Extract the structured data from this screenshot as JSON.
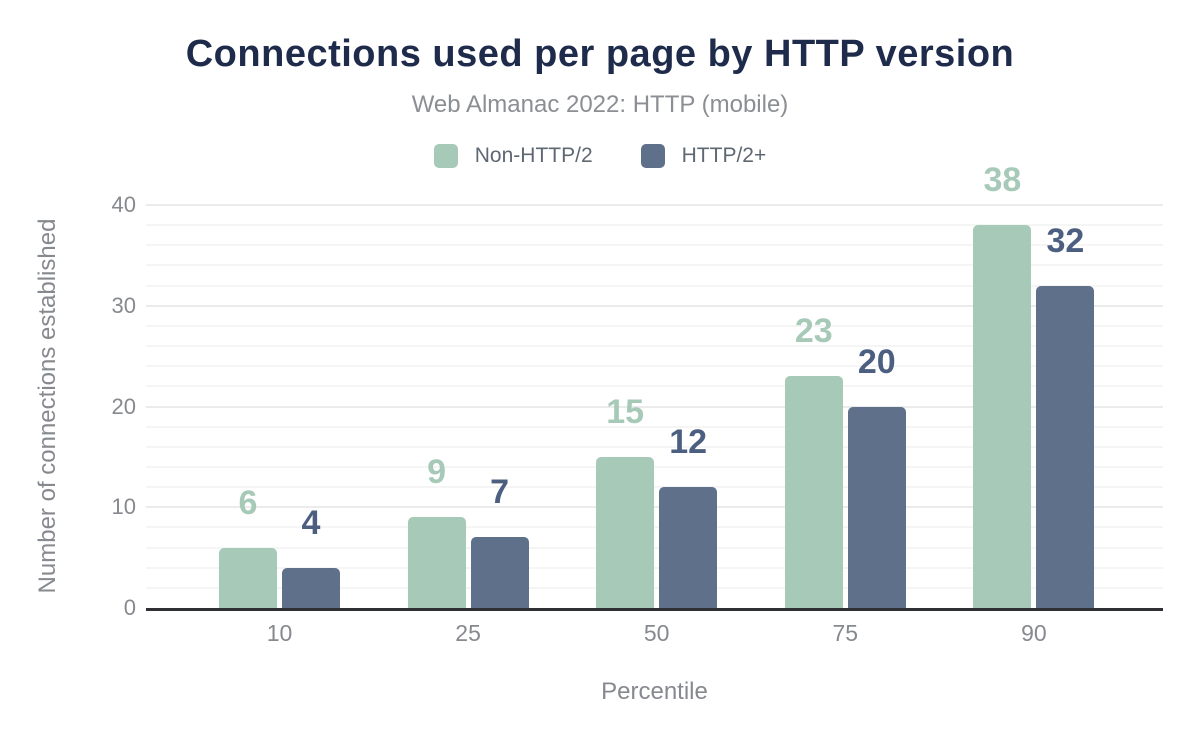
{
  "header": {
    "title": "Connections used per page by HTTP version",
    "subtitle": "Web Almanac 2022: HTTP (mobile)"
  },
  "legend": {
    "items": [
      {
        "label": "Non-HTTP/2",
        "color": "#a7cab8"
      },
      {
        "label": "HTTP/2+",
        "color": "#5f708b"
      }
    ]
  },
  "chart_data": {
    "type": "bar",
    "title": "Connections used per page by HTTP version",
    "subtitle": "Web Almanac 2022: HTTP (mobile)",
    "categories": [
      "10",
      "25",
      "50",
      "75",
      "90"
    ],
    "series": [
      {
        "name": "Non-HTTP/2",
        "color": "#a7cab8",
        "label_color": "#a7cab8",
        "values": [
          6,
          9,
          15,
          23,
          38
        ]
      },
      {
        "name": "HTTP/2+",
        "color": "#5f708b",
        "label_color": "#4c5f80",
        "values": [
          4,
          7,
          12,
          20,
          32
        ]
      }
    ],
    "xlabel": "Percentile",
    "ylabel": "Number of connections established",
    "ylim": [
      0,
      40
    ],
    "y_ticks": [
      0,
      10,
      20,
      30,
      40
    ],
    "y_major_interval": 10,
    "y_minor_interval": 2,
    "grid": true,
    "legend_position": "top",
    "data_labels": true
  },
  "colors": {
    "title": "#1e2b4b",
    "subtitle": "#8b8e93",
    "legend_text": "#5e6873",
    "tick_label": "#86898e",
    "axis_line": "#2e3033",
    "grid_minor": "#f5f5f5",
    "grid_major": "#ebebeb"
  }
}
